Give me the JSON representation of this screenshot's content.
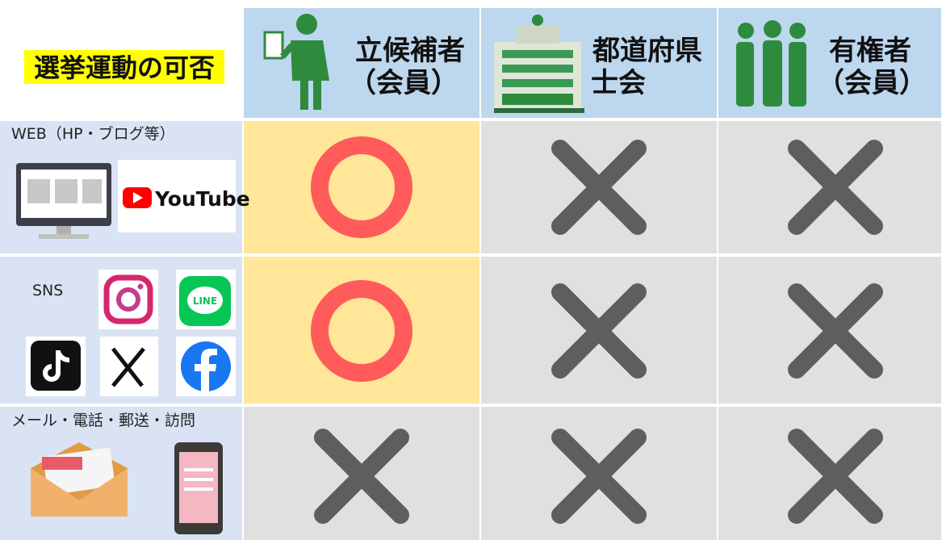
{
  "title": "選挙運動の可否",
  "columns": [
    {
      "lines": [
        "立候補者",
        "（会員）"
      ]
    },
    {
      "lines": [
        "都道府県",
        "士会"
      ]
    },
    {
      "lines": [
        "有権者",
        "（会員）"
      ]
    }
  ],
  "rows": [
    {
      "label": "WEB（HP・ブログ等）",
      "logos": [
        "YouTube"
      ]
    },
    {
      "label": "SNS",
      "logos": [
        "LINE"
      ]
    },
    {
      "label": "メール・電話・郵送・訪問"
    }
  ]
}
